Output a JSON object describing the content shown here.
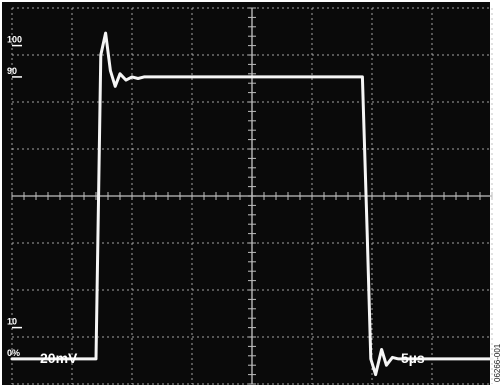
{
  "chart_data": {
    "type": "line",
    "title": "",
    "xlabel": "",
    "ylabel": "",
    "x_units": "µs",
    "x": [
      0,
      7,
      7.4,
      7.8,
      8.2,
      8.6,
      9,
      9.5,
      10,
      10.5,
      11,
      11.5,
      12,
      16,
      20,
      24,
      28,
      29.2,
      29.6,
      29.9,
      30.3,
      30.8,
      31.2,
      31.7,
      32.2,
      33,
      37,
      40
    ],
    "y": [
      0,
      0,
      97,
      104,
      92,
      87,
      91,
      89,
      90,
      89.5,
      90,
      90,
      90,
      90,
      90,
      90,
      90,
      90,
      40,
      0,
      -5,
      3,
      -2,
      0.5,
      0,
      0,
      0,
      0
    ],
    "xlim": [
      0,
      40
    ],
    "ylim": [
      -8,
      112
    ],
    "grid": true,
    "scale_markers": [
      {
        "value": 100,
        "label": "100"
      },
      {
        "value": 90,
        "label": "90"
      },
      {
        "value": 10,
        "label": "10"
      },
      {
        "value": 0,
        "label": "0%"
      }
    ],
    "volts_per_div": "20mV",
    "time_per_div": "5µs"
  },
  "colors": {
    "screen": "#0a0a0a",
    "grid": "#bdbdbd",
    "trace": "#f5f5f5",
    "labels": "#ffffff"
  },
  "figure_id": "06266-001"
}
